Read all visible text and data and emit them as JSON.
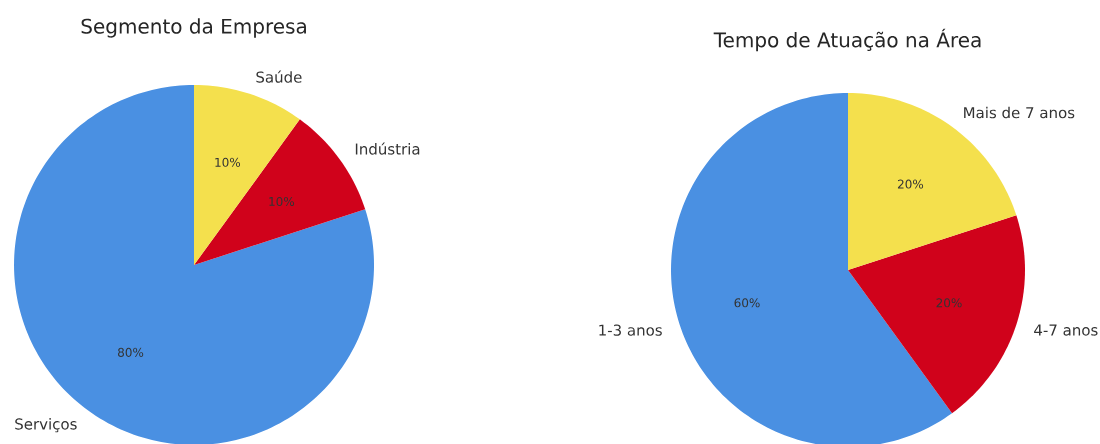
{
  "chart_data": [
    {
      "type": "pie",
      "title": "Segmento da Empresa",
      "categories": [
        "Serviços",
        "Indústria",
        "Saúde"
      ],
      "values": [
        80,
        10,
        10
      ],
      "colors": [
        "#4a90e2",
        "#d0021b",
        "#f4e04d"
      ],
      "value_labels": [
        "80%",
        "10%",
        "10%"
      ]
    },
    {
      "type": "pie",
      "title": "Tempo de Atuação na Área",
      "categories": [
        "1-3 anos",
        "4-7 anos",
        "Mais de 7 anos"
      ],
      "values": [
        60,
        20,
        20
      ],
      "colors": [
        "#4a90e2",
        "#d0021b",
        "#f4e04d"
      ],
      "value_labels": [
        "60%",
        "20%",
        "20%"
      ]
    }
  ]
}
